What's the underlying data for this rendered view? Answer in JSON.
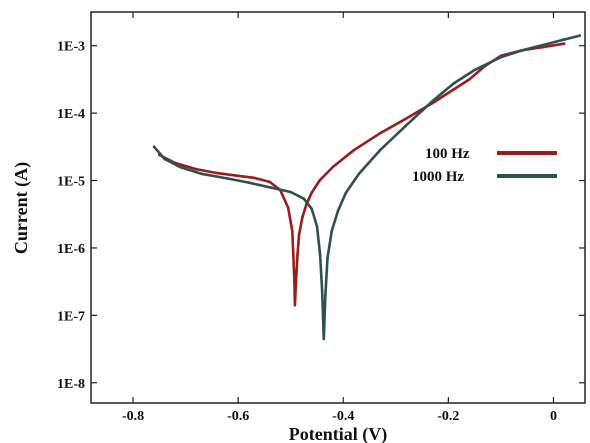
{
  "chart_data": {
    "type": "line",
    "title": "",
    "xlabel": "Potential (V)",
    "ylabel": "Current (A)",
    "xlim": [
      -0.88,
      0.06
    ],
    "ylim_log10": [
      -8.3,
      -2.5
    ],
    "y_scale": "log",
    "x_ticks": [
      "-0.8",
      "-0.6",
      "-0.4",
      "-0.2",
      "0"
    ],
    "x_tick_values": [
      -0.8,
      -0.6,
      -0.4,
      -0.2,
      0.0
    ],
    "y_ticks": [
      "1E-8",
      "1E-7",
      "1E-6",
      "1E-5",
      "1E-4",
      "1E-3"
    ],
    "y_tick_values": [
      -8,
      -7,
      -6,
      -5,
      -4,
      -3
    ],
    "grid": false,
    "legend_position": "right",
    "series": [
      {
        "name": "100 Hz",
        "color": "#9b1c1c",
        "points": [
          [
            -0.75,
            -4.62
          ],
          [
            -0.72,
            -4.74
          ],
          [
            -0.68,
            -4.83
          ],
          [
            -0.64,
            -4.89
          ],
          [
            -0.6,
            -4.93
          ],
          [
            -0.57,
            -4.96
          ],
          [
            -0.54,
            -5.02
          ],
          [
            -0.52,
            -5.14
          ],
          [
            -0.505,
            -5.4
          ],
          [
            -0.497,
            -5.75
          ],
          [
            -0.495,
            -6.1
          ],
          [
            -0.493,
            -6.5
          ],
          [
            -0.492,
            -6.85
          ],
          [
            -0.49,
            -6.5
          ],
          [
            -0.487,
            -6.1
          ],
          [
            -0.484,
            -5.8
          ],
          [
            -0.478,
            -5.55
          ],
          [
            -0.47,
            -5.35
          ],
          [
            -0.46,
            -5.18
          ],
          [
            -0.445,
            -5.0
          ],
          [
            -0.42,
            -4.8
          ],
          [
            -0.38,
            -4.55
          ],
          [
            -0.33,
            -4.3
          ],
          [
            -0.28,
            -4.08
          ],
          [
            -0.23,
            -3.85
          ],
          [
            -0.19,
            -3.65
          ],
          [
            -0.16,
            -3.5
          ],
          [
            -0.13,
            -3.3
          ],
          [
            -0.1,
            -3.15
          ],
          [
            -0.06,
            -3.07
          ],
          [
            -0.02,
            -3.02
          ],
          [
            0.02,
            -2.97
          ]
        ]
      },
      {
        "name": "1000 Hz",
        "color": "#2f5050",
        "points": [
          [
            -0.76,
            -4.5
          ],
          [
            -0.74,
            -4.68
          ],
          [
            -0.71,
            -4.8
          ],
          [
            -0.67,
            -4.9
          ],
          [
            -0.62,
            -4.97
          ],
          [
            -0.58,
            -5.03
          ],
          [
            -0.54,
            -5.1
          ],
          [
            -0.5,
            -5.17
          ],
          [
            -0.475,
            -5.27
          ],
          [
            -0.46,
            -5.42
          ],
          [
            -0.45,
            -5.68
          ],
          [
            -0.444,
            -6.1
          ],
          [
            -0.44,
            -6.65
          ],
          [
            -0.437,
            -7.35
          ],
          [
            -0.434,
            -6.7
          ],
          [
            -0.43,
            -6.15
          ],
          [
            -0.422,
            -5.75
          ],
          [
            -0.41,
            -5.45
          ],
          [
            -0.395,
            -5.18
          ],
          [
            -0.37,
            -4.9
          ],
          [
            -0.33,
            -4.55
          ],
          [
            -0.28,
            -4.18
          ],
          [
            -0.23,
            -3.82
          ],
          [
            -0.19,
            -3.56
          ],
          [
            -0.15,
            -3.36
          ],
          [
            -0.1,
            -3.17
          ],
          [
            -0.06,
            -3.07
          ],
          [
            -0.02,
            -2.99
          ],
          [
            0.02,
            -2.91
          ],
          [
            0.05,
            -2.85
          ]
        ]
      }
    ]
  }
}
